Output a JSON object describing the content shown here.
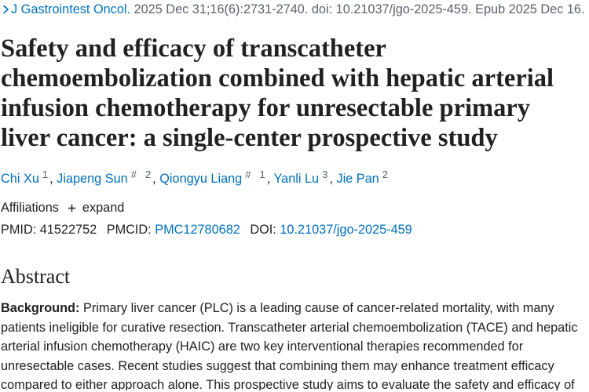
{
  "colors": {
    "link": "#0071bc",
    "text": "#212121",
    "muted": "#5b616b"
  },
  "citation": {
    "icon": "chevron-right-icon",
    "journal": "J Gastrointest Oncol.",
    "cit": "2025 Dec 31;16(6):2731-2740.",
    "doi": "doi: 10.21037/jgo-2025-459.",
    "epub": "Epub 2025 Dec 16."
  },
  "title": {
    "lines": [
      "Safety and efficacy of transcatheter",
      "chemoembolization combined with hepatic arterial",
      "infusion chemotherapy for unresectable primary",
      "liver cancer: a single-center prospective study"
    ]
  },
  "authors": [
    {
      "name": "Chi Xu",
      "aff": "1"
    },
    {
      "name": "Jiapeng Sun",
      "equal": "#",
      "aff": "2"
    },
    {
      "name": "Qiongyu Liang",
      "equal": "#",
      "aff": "1"
    },
    {
      "name": "Yanli Lu",
      "aff": "3"
    },
    {
      "name": "Jie Pan",
      "aff": "2"
    }
  ],
  "authors_separator": ",",
  "affiliations": {
    "label": "Affiliations",
    "toggle_icon": "plus-icon",
    "toggle_label": "expand"
  },
  "identifiers": {
    "pmid_label": "PMID:",
    "pmid": "41522752",
    "pmcid_label": "PMCID:",
    "pmcid": "PMC12780682",
    "doi_label": "DOI:",
    "doi": "10.21037/jgo-2025-459"
  },
  "abstract": {
    "heading": "Abstract",
    "label": "Background:",
    "lines": [
      "Primary liver cancer (PLC) is a leading cause of cancer-related mortality, with many",
      "patients ineligible for curative resection. Transcatheter arterial chemoembolization (TACE) and hepatic",
      "arterial infusion chemotherapy (HAIC) are two key interventional therapies recommended for",
      "unresectable cases. Recent studies suggest that combining them may enhance treatment efficacy",
      "compared to either approach alone. This prospective study aims to evaluate the safety and efficacy of"
    ]
  }
}
